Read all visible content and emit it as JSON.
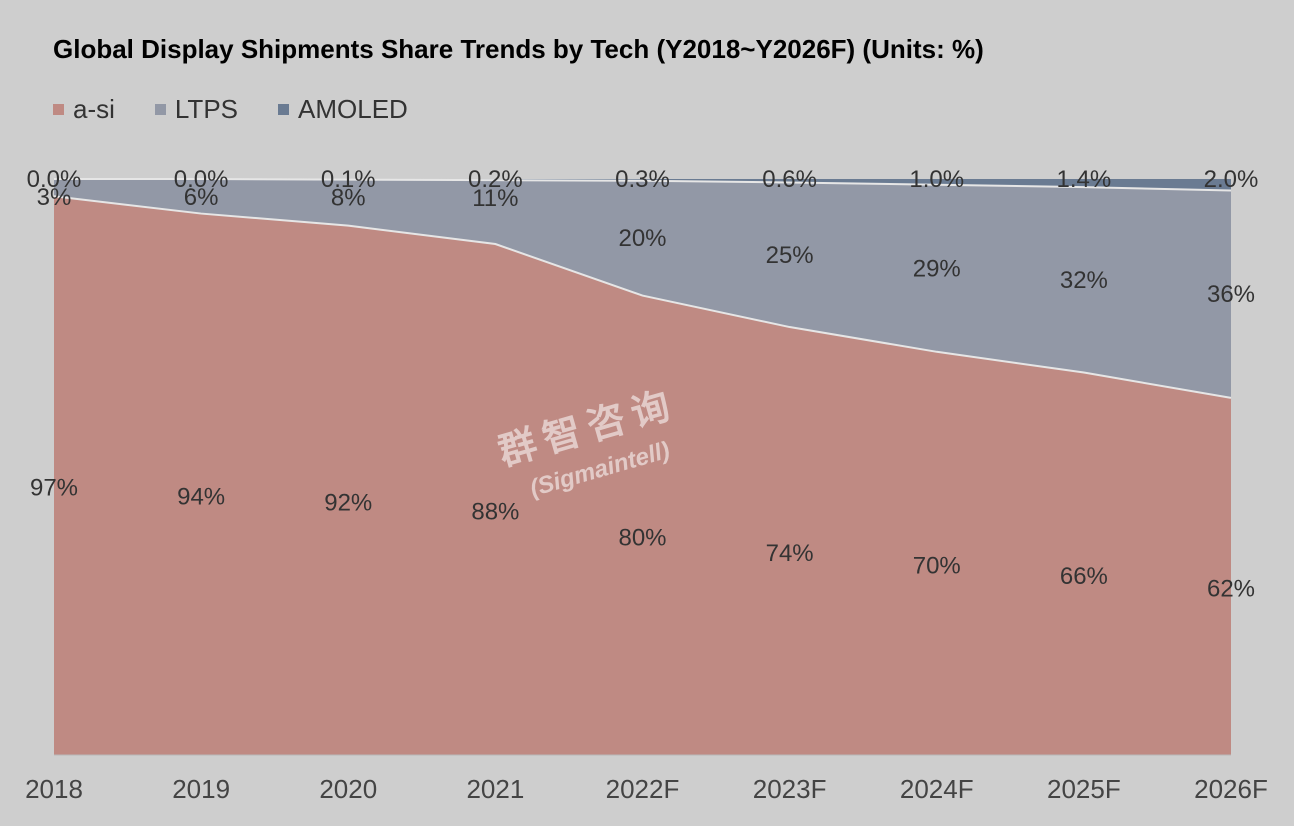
{
  "chart_data": {
    "type": "area",
    "stacked": true,
    "title": "Global Display Shipments Share Trends by Tech (Y2018~Y2026F) (Units: %)",
    "categories": [
      "2018",
      "2019",
      "2020",
      "2021",
      "2022F",
      "2023F",
      "2024F",
      "2025F",
      "2026F"
    ],
    "ylim": [
      0,
      100
    ],
    "legend_position": "top-left",
    "grid": false,
    "series": [
      {
        "name": "a-si",
        "color": "#bf8a83",
        "values": [
          97,
          94,
          92,
          88,
          80,
          74,
          70,
          66,
          62
        ],
        "labels": [
          "97%",
          "94%",
          "92%",
          "88%",
          "80%",
          "74%",
          "70%",
          "66%",
          "62%"
        ]
      },
      {
        "name": "LTPS",
        "color": "#9298a6",
        "values": [
          3,
          6,
          8,
          11,
          20,
          25,
          29,
          32,
          36
        ],
        "labels": [
          "3%",
          "6%",
          "8%",
          "11%",
          "20%",
          "25%",
          "29%",
          "32%",
          "36%"
        ]
      },
      {
        "name": "AMOLED",
        "color": "#6a7b92",
        "values": [
          0.0,
          0.0,
          0.1,
          0.2,
          0.3,
          0.6,
          1.0,
          1.4,
          2.0
        ],
        "labels": [
          "0.0%",
          "0.0%",
          "0.1%",
          "0.2%",
          "0.3%",
          "0.6%",
          "1.0%",
          "1.4%",
          "2.0%"
        ]
      }
    ]
  },
  "watermark": {
    "text_cn": "群智咨询",
    "text_en": "(Sigmaintell)"
  }
}
